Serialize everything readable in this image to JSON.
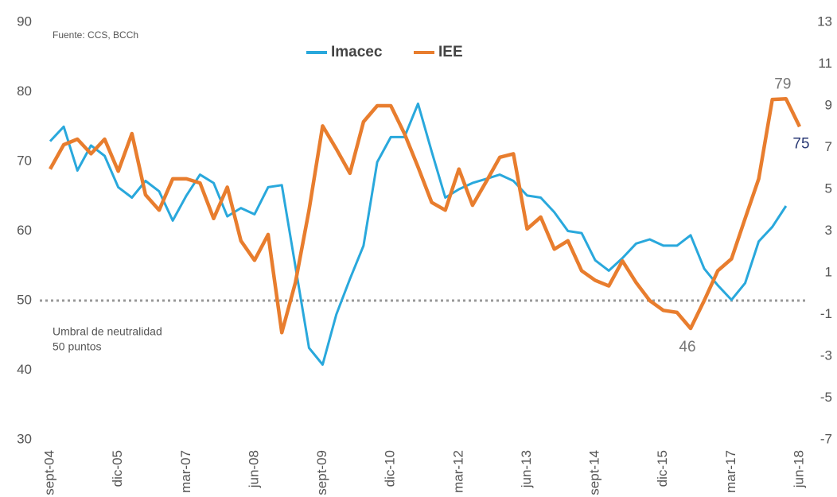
{
  "chart_data": {
    "type": "line",
    "source": "Fuente: CCS, BCCh",
    "categories": [
      "sept-04",
      null,
      null,
      null,
      null,
      "dic-05",
      null,
      null,
      null,
      null,
      "mar-07",
      null,
      null,
      null,
      null,
      "jun-08",
      null,
      null,
      null,
      null,
      "sept-09",
      null,
      null,
      null,
      null,
      "dic-10",
      null,
      null,
      null,
      null,
      "mar-12",
      null,
      null,
      null,
      null,
      "jun-13",
      null,
      null,
      null,
      null,
      "sept-14",
      null,
      null,
      null,
      null,
      "dic-15",
      null,
      null,
      null,
      null,
      "mar-17",
      null,
      null,
      null,
      null,
      "jun-18"
    ],
    "series": [
      {
        "name": "Imacec",
        "color": "#29a8dc",
        "axis": "y2",
        "values": [
          7.3,
          8.0,
          5.9,
          7.1,
          6.6,
          5.1,
          4.6,
          5.4,
          4.9,
          3.5,
          4.7,
          5.7,
          5.3,
          3.7,
          4.1,
          3.8,
          5.1,
          5.2,
          1.3,
          -2.6,
          -3.4,
          -1.0,
          0.7,
          2.3,
          6.3,
          7.5,
          7.5,
          9.1,
          6.8,
          4.6,
          5.0,
          5.3,
          5.5,
          5.7,
          5.4,
          4.7,
          4.6,
          3.9,
          3.0,
          2.9,
          1.6,
          1.1,
          1.7,
          2.4,
          2.6,
          2.3,
          2.3,
          2.8,
          1.2,
          0.4,
          -0.3,
          0.5,
          2.5,
          3.2,
          4.2,
          null
        ]
      },
      {
        "name": "IEE",
        "color": "#e87d2e",
        "values": [
          68.9,
          72.4,
          73.2,
          71.1,
          73.2,
          68.6,
          74.0,
          65.2,
          63.0,
          67.5,
          67.5,
          66.9,
          61.8,
          66.3,
          58.6,
          55.8,
          59.5,
          45.4,
          52.6,
          63.0,
          75.1,
          71.8,
          68.3,
          75.7,
          78.0,
          78.0,
          74.0,
          69.2,
          64.1,
          63.0,
          68.9,
          63.7,
          67.1,
          70.6,
          71.1,
          60.3,
          62.0,
          57.4,
          58.6,
          54.3,
          52.9,
          52.1,
          55.7,
          52.6,
          50.0,
          48.6,
          48.3,
          46,
          50.0,
          54.3,
          56.0,
          61.8,
          67.5,
          78.9,
          79,
          75
        ],
        "value_labels": [
          null,
          null,
          null,
          null,
          null,
          null,
          null,
          null,
          null,
          null,
          null,
          null,
          null,
          null,
          null,
          null,
          null,
          null,
          null,
          null,
          null,
          null,
          null,
          null,
          null,
          null,
          null,
          null,
          null,
          null,
          null,
          null,
          null,
          null,
          null,
          null,
          null,
          null,
          null,
          null,
          null,
          null,
          null,
          null,
          null,
          null,
          null,
          "46",
          null,
          null,
          null,
          null,
          null,
          null,
          "79",
          "75"
        ]
      }
    ],
    "ylim": [
      30,
      90
    ],
    "yticks": [
      30,
      40,
      50,
      60,
      70,
      80,
      90
    ],
    "y2lim": [
      -7,
      13
    ],
    "y2ticks": [
      -7,
      -5,
      -3,
      -1,
      1,
      3,
      5,
      7,
      9,
      11,
      13
    ],
    "threshold": 50,
    "annotations": [
      "Umbral de neutralidad",
      "50 puntos"
    ],
    "legend": "top",
    "grid": false
  }
}
